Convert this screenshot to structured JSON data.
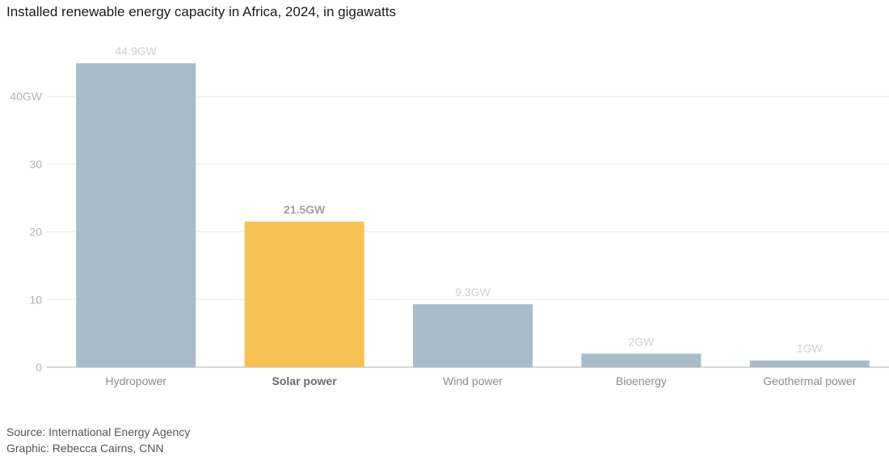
{
  "chart_data": {
    "type": "bar",
    "title": "Installed renewable energy capacity in Africa, 2024, in gigawatts",
    "categories": [
      "Hydropower",
      "Solar power",
      "Wind power",
      "Bioenergy",
      "Geothermal power"
    ],
    "values": [
      44.9,
      21.5,
      9.3,
      2,
      1
    ],
    "data_labels": [
      "44.9GW",
      "21.5GW",
      "9.3GW",
      "2GW",
      "1GW"
    ],
    "highlight_index": 1,
    "ylim": [
      0,
      50
    ],
    "yticks": [
      0,
      10,
      20,
      30,
      40
    ],
    "ytick_labels": [
      "0",
      "10",
      "20",
      "30",
      "40GW"
    ],
    "grid": true,
    "colors": {
      "default": "#a8bcc9",
      "highlight": "#f6c155",
      "grid": "#ebebeb",
      "axis": "#b3b3b3"
    }
  },
  "footer": {
    "source": "Source: International Energy Agency",
    "graphic": "Graphic: Rebecca Cairns, CNN"
  }
}
